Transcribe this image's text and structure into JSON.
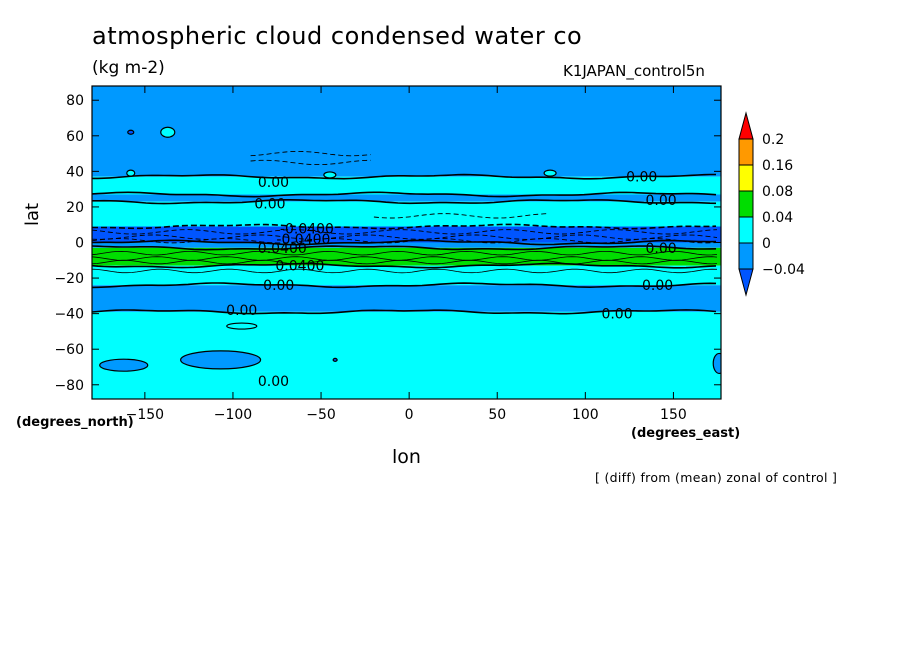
{
  "chart_data": {
    "type": "heatmap",
    "title": "atmospheric cloud condensed water co",
    "units": "(kg m-2)",
    "experiment": "K1JAPAN_control5n",
    "xlabel": "lon",
    "xlabel_units": "(degrees_east)",
    "ylabel": "lat",
    "ylabel_units": "(degrees_north)",
    "footnote": "[ (diff) from (mean) zonal of control ]",
    "xlim": [
      -180,
      177
    ],
    "ylim": [
      -88,
      88
    ],
    "x_ticks": [
      -150,
      -100,
      -50,
      0,
      50,
      100,
      150
    ],
    "y_ticks": [
      80,
      60,
      40,
      20,
      0,
      -20,
      -40,
      -60,
      -80
    ],
    "x_tick_labels": [
      "−150",
      "−100",
      "−50",
      "0",
      "50",
      "100",
      "150"
    ],
    "y_tick_labels": [
      "80",
      "60",
      "40",
      "20",
      "0",
      "−20",
      "−40",
      "−60",
      "−80"
    ],
    "colorbar": {
      "levels": [
        "0.2",
        "0.16",
        "0.08",
        "0.04",
        "0",
        "−0.04"
      ],
      "colors": [
        "#ff0000",
        "#ff9900",
        "#ffff00",
        "#00dd00",
        "#00ffff",
        "#0099ff",
        "#0055ff"
      ]
    },
    "zonal_bands": [
      {
        "lat_from": 88,
        "lat_to": 37,
        "class": "-0.04..0",
        "color": "#0099ff"
      },
      {
        "lat_from": 37,
        "lat_to": 27,
        "class": "0..0.04",
        "color": "#00ffff"
      },
      {
        "lat_from": 27,
        "lat_to": 23,
        "class": "-0.04..0",
        "color": "#0099ff"
      },
      {
        "lat_from": 23,
        "lat_to": 9,
        "class": "0..0.04",
        "color": "#00ffff"
      },
      {
        "lat_from": 9,
        "lat_to": 0,
        "class": "<-0.04",
        "color": "#0055ff"
      },
      {
        "lat_from": 0,
        "lat_to": -3,
        "class": "-0.04..0",
        "color": "#0099ff"
      },
      {
        "lat_from": -3,
        "lat_to": -13,
        "class": "0.04..0.08",
        "color": "#00dd00"
      },
      {
        "lat_from": -13,
        "lat_to": -24,
        "class": "0..0.04",
        "color": "#00ffff"
      },
      {
        "lat_from": -24,
        "lat_to": -39,
        "class": "-0.04..0",
        "color": "#0099ff"
      },
      {
        "lat_from": -39,
        "lat_to": -88,
        "class": "0..0.04",
        "color": "#00ffff"
      }
    ],
    "contour_labels": [
      {
        "text": "0.00",
        "lon": -77,
        "lat": 34
      },
      {
        "text": "0.00",
        "lon": -79,
        "lat": 22
      },
      {
        "text": "0.00",
        "lon": 132,
        "lat": 37
      },
      {
        "text": "0.00",
        "lon": 143,
        "lat": 24
      },
      {
        "text": "-0.0400",
        "lon": -58,
        "lat": 8
      },
      {
        "text": "-0.0400",
        "lon": -60,
        "lat": 2
      },
      {
        "text": "0.0400",
        "lon": -72,
        "lat": -3
      },
      {
        "text": "0.00",
        "lon": 143,
        "lat": -3
      },
      {
        "text": "0.0400",
        "lon": -62,
        "lat": -13
      },
      {
        "text": "0.00",
        "lon": -74,
        "lat": -24
      },
      {
        "text": "0.00",
        "lon": 141,
        "lat": -24
      },
      {
        "text": "0.00",
        "lon": -95,
        "lat": -38
      },
      {
        "text": "0.00",
        "lon": 118,
        "lat": -40
      },
      {
        "text": "0.00",
        "lon": -77,
        "lat": -78
      }
    ]
  }
}
